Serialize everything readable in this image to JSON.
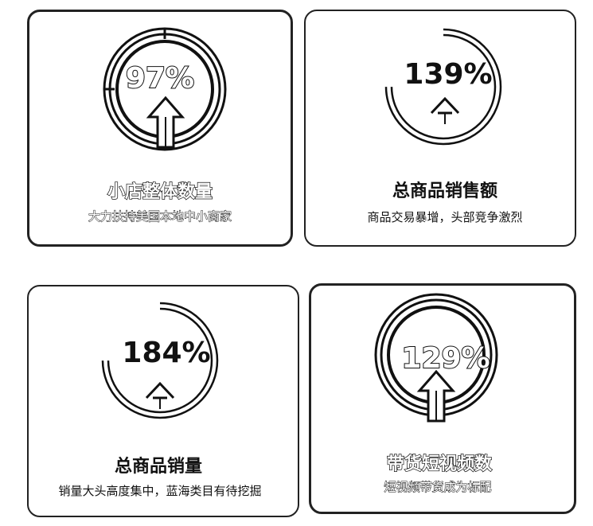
{
  "cards": [
    {
      "value": "97%",
      "title": "小店整体数量",
      "subtitle": "大力扶持美国本地中小商家",
      "progress": 0.97
    },
    {
      "value": "139%",
      "title": "总商品销售额",
      "subtitle": "商品交易暴增，头部竞争激烈",
      "progress": 0.75
    },
    {
      "value": "184%",
      "title": "总商品销量",
      "subtitle": "销量大头高度集中，蓝海类目有待挖掘",
      "progress": 0.75
    },
    {
      "value": "129%",
      "title": "带货短视频数",
      "subtitle": "短视频带货成为标配",
      "progress": 1.0
    }
  ],
  "colors": {
    "stroke": "#111111",
    "light_ring": "#cccccc"
  },
  "icons": {
    "arrow": "up-arrow-icon",
    "gauge": "progress-ring-icon"
  }
}
